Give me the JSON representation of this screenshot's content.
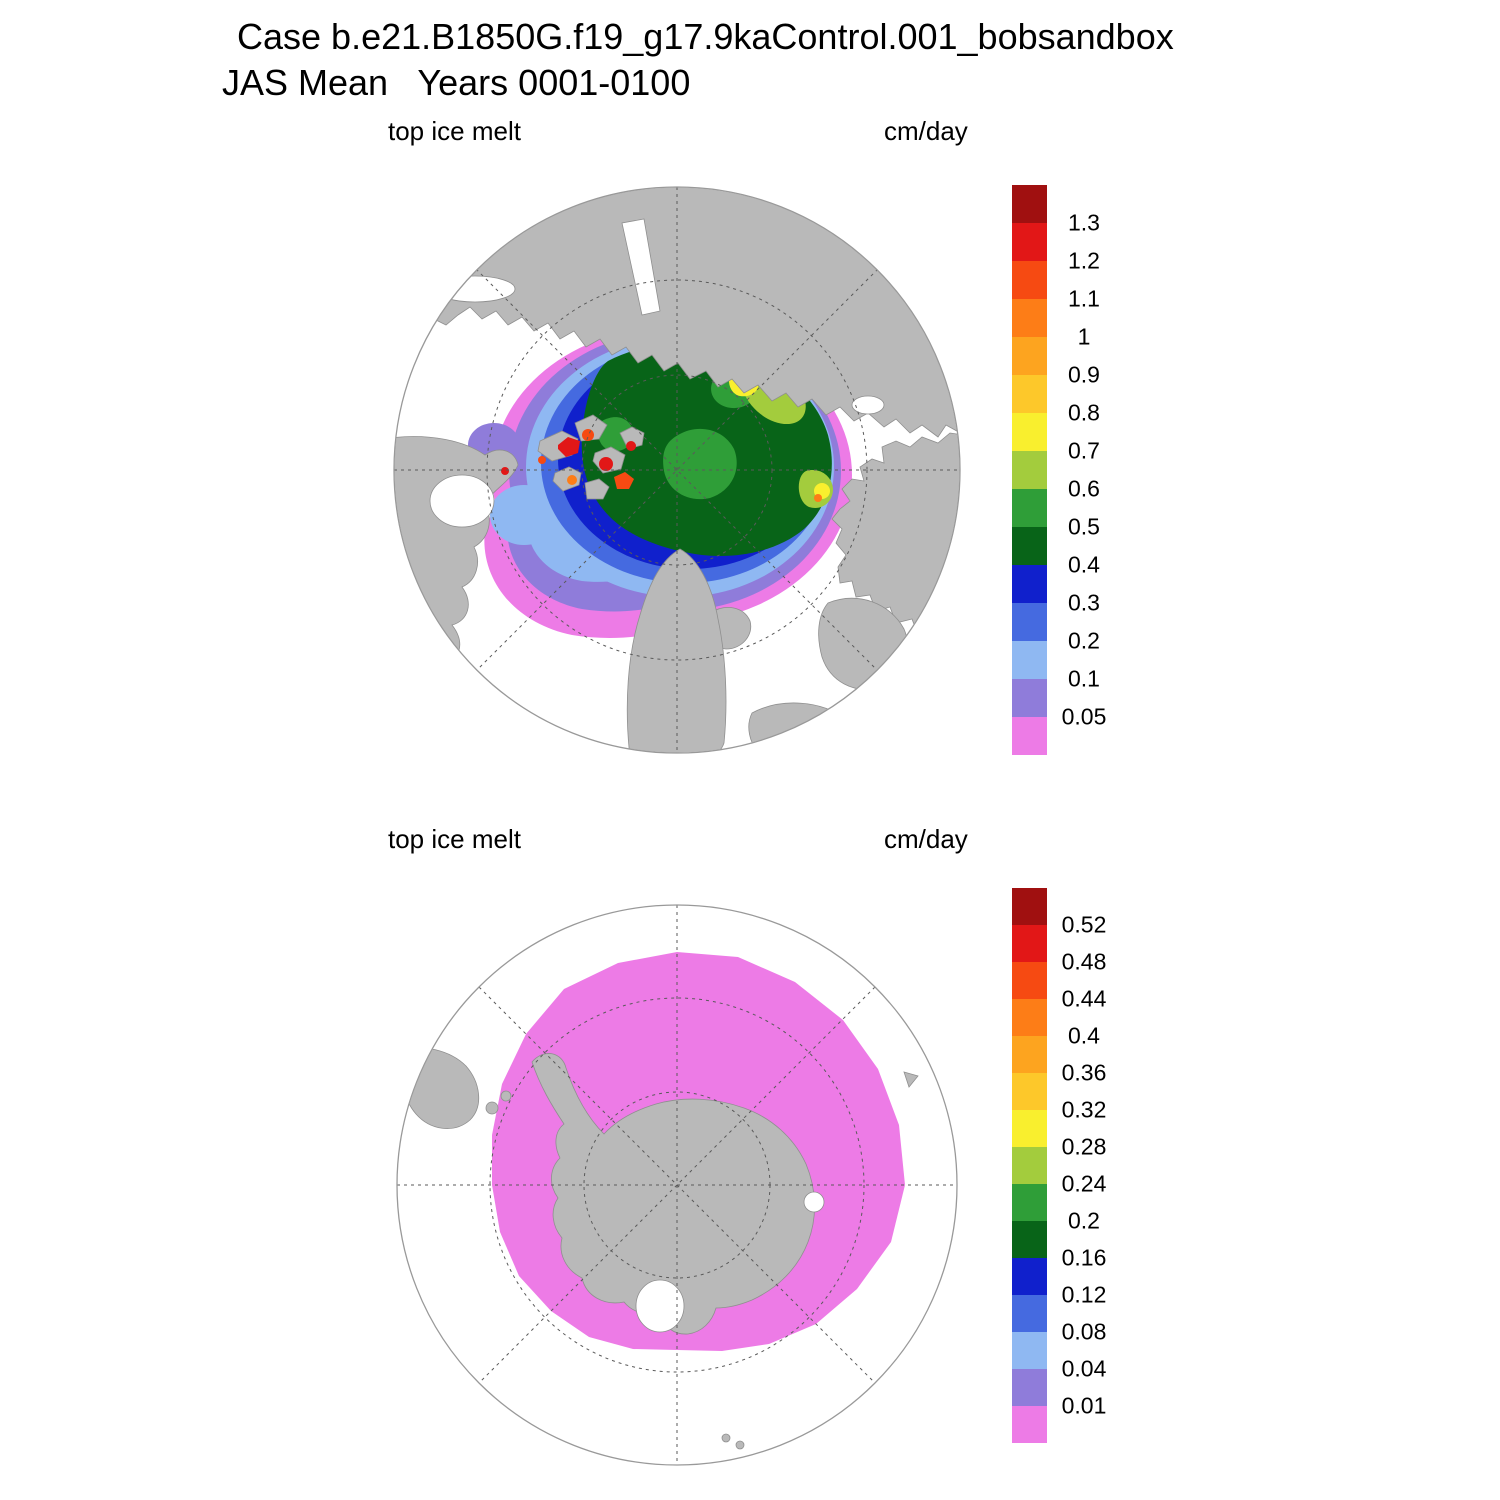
{
  "title": {
    "line1": "Case b.e21.B1850G.f19_g17.9kaControl.001_bobsandbox",
    "line2": "JAS Mean   Years 0001-0100"
  },
  "panels": [
    {
      "field_label": "top ice melt",
      "units_label": "cm/day",
      "hemisphere": "Northern (Arctic), polar stereographic view"
    },
    {
      "field_label": "top ice melt",
      "units_label": "cm/day",
      "hemisphere": "Southern (Antarctic), polar stereographic view"
    }
  ],
  "palette": [
    "#a01010",
    "#e21717",
    "#f64a12",
    "#fd7d17",
    "#fda41f",
    "#fdc82a",
    "#f9ef2e",
    "#a3cc3d",
    "#2f9e38",
    "#086418",
    "#1020cc",
    "#456ae0",
    "#8fb8f2",
    "#8f7cda",
    "#ed7be6"
  ],
  "map_colors": {
    "land": "#b9b9b9",
    "coast": "#8f8f8f",
    "ocean": "#ffffff",
    "graticule": "#5a5a5a",
    "boundary": "#999999"
  },
  "colorbars": [
    {
      "labels": [
        "1.3",
        "1.2",
        "1.1",
        "1",
        "0.9",
        "0.8",
        "0.7",
        "0.6",
        "0.5",
        "0.4",
        "0.3",
        "0.2",
        "0.1",
        "0.05"
      ]
    },
    {
      "labels": [
        "0.52",
        "0.48",
        "0.44",
        "0.4",
        "0.36",
        "0.32",
        "0.28",
        "0.24",
        "0.2",
        "0.16",
        "0.12",
        "0.08",
        "0.04",
        "0.01"
      ]
    }
  ],
  "chart_data": [
    {
      "type": "heatmap",
      "title": "top ice melt",
      "units": "cm/day",
      "projection": "north polar stereographic",
      "levels": [
        0.05,
        0.1,
        0.2,
        0.3,
        0.4,
        0.5,
        0.6,
        0.7,
        0.8,
        0.9,
        1.0,
        1.1,
        1.2,
        1.3
      ],
      "colors_high_to_low": [
        "#a01010",
        "#e21717",
        "#f64a12",
        "#fd7d17",
        "#fda41f",
        "#fdc82a",
        "#f9ef2e",
        "#a3cc3d",
        "#2f9e38",
        "#086418",
        "#1020cc",
        "#456ae0",
        "#8fb8f2",
        "#8f7cda",
        "#ed7be6"
      ],
      "legend_position": "right vertical labelbar",
      "description": "Central Arctic Ocean ice pack melts at ~0.4-0.6 cm/day (dark/medium green), with ~0.6-0.8 cm/day (olive/yellow) patches on its Siberian/eastern edge, fringed by 0.05-0.4 cm/day (blues, violet, magenta) along the ice edge near Greenland, Baffin Bay and the eastern seas; localized maxima above 1.0-1.3 cm/day (orange/red spots) in the Canadian Arctic Archipelago channels. Land is gray, open ocean white."
    },
    {
      "type": "heatmap",
      "title": "top ice melt",
      "units": "cm/day",
      "projection": "south polar stereographic",
      "levels": [
        0.01,
        0.04,
        0.08,
        0.12,
        0.16,
        0.2,
        0.24,
        0.28,
        0.32,
        0.36,
        0.4,
        0.44,
        0.48,
        0.52
      ],
      "colors_high_to_low": [
        "#a01010",
        "#e21717",
        "#f64a12",
        "#fd7d17",
        "#fda41f",
        "#fdc82a",
        "#f9ef2e",
        "#a3cc3d",
        "#2f9e38",
        "#086418",
        "#1020cc",
        "#456ae0",
        "#8fb8f2",
        "#8f7cda",
        "#ed7be6"
      ],
      "legend_position": "right vertical labelbar",
      "description": "A broad ring of winter sea ice around gray Antarctica shows top ice melt in the lowest bin, below ~0.01 cm/day (magenta) nearly everywhere; no higher-melt colors appear."
    }
  ]
}
